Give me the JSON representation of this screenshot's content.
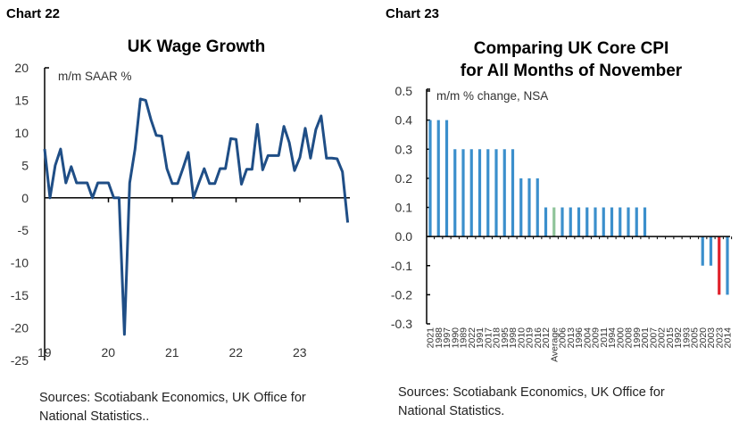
{
  "chart_data": [
    {
      "label": "Chart 22",
      "type": "line",
      "title": "UK Wage Growth",
      "unit_note": "m/m SAAR %",
      "ylim": [
        -25,
        20
      ],
      "yticks": [
        20,
        15,
        10,
        5,
        0,
        -5,
        -10,
        -15,
        -20,
        -25
      ],
      "xticks": [
        "19",
        "20",
        "21",
        "22",
        "23"
      ],
      "x_start": "2019-01",
      "frequency": "monthly",
      "color": "#1f4e86",
      "values": [
        7.5,
        0,
        5,
        7.5,
        2.3,
        4.8,
        2.3,
        2.3,
        2.3,
        0,
        2.3,
        2.3,
        2.3,
        0,
        0,
        -21,
        2.3,
        7.5,
        15.2,
        15,
        12,
        9.6,
        9.5,
        4.5,
        2.2,
        2.2,
        4.5,
        7,
        0,
        2.3,
        4.5,
        2.2,
        2.2,
        4.5,
        4.5,
        9.1,
        9,
        2.1,
        4.4,
        4.4,
        11.3,
        4.3,
        6.5,
        6.5,
        6.5,
        11,
        8.5,
        4.2,
        6.2,
        10.7,
        6.1,
        10.5,
        12.6,
        6.1,
        6.1,
        6,
        4,
        -3.8
      ],
      "source": [
        "Sources: Scotiabank Economics, UK Office for",
        "National Statistics.."
      ]
    },
    {
      "label": "Chart 23",
      "type": "bar",
      "title": [
        "Comparing UK Core CPI",
        "for All Months of November"
      ],
      "unit_note": "m/m % change, NSA",
      "ylim": [
        -0.3,
        0.5
      ],
      "yticks": [
        "0.5",
        "0.4",
        "0.3",
        "0.2",
        "0.1",
        "0.0",
        "-0.1",
        "-0.2",
        "-0.3"
      ],
      "categories": [
        "2021",
        "1988",
        "1997",
        "1990",
        "1989",
        "2022",
        "1991",
        "2017",
        "2018",
        "1995",
        "1998",
        "2010",
        "2019",
        "2016",
        "2012",
        "Average",
        "2006",
        "2013",
        "1996",
        "2004",
        "2009",
        "2011",
        "1994",
        "2000",
        "2008",
        "1999",
        "2001",
        "2007",
        "2002",
        "2015",
        "1992",
        "1993",
        "2005",
        "2020",
        "2003",
        "2023",
        "2014"
      ],
      "values": [
        0.4,
        0.4,
        0.4,
        0.3,
        0.3,
        0.3,
        0.3,
        0.3,
        0.3,
        0.3,
        0.3,
        0.2,
        0.2,
        0.2,
        0.1,
        0.1,
        0.1,
        0.1,
        0.1,
        0.1,
        0.1,
        0.1,
        0.1,
        0.1,
        0.1,
        0.1,
        0.1,
        0,
        0,
        0,
        0,
        0,
        0,
        -0.1,
        -0.1,
        -0.2,
        -0.2
      ],
      "colors": {
        "default": "#3b8fcc",
        "Average": "#8fc49a",
        "2023": "#e0202a"
      },
      "source": [
        "Sources: Scotiabank Economics, UK Office for",
        "National Statistics."
      ]
    }
  ]
}
